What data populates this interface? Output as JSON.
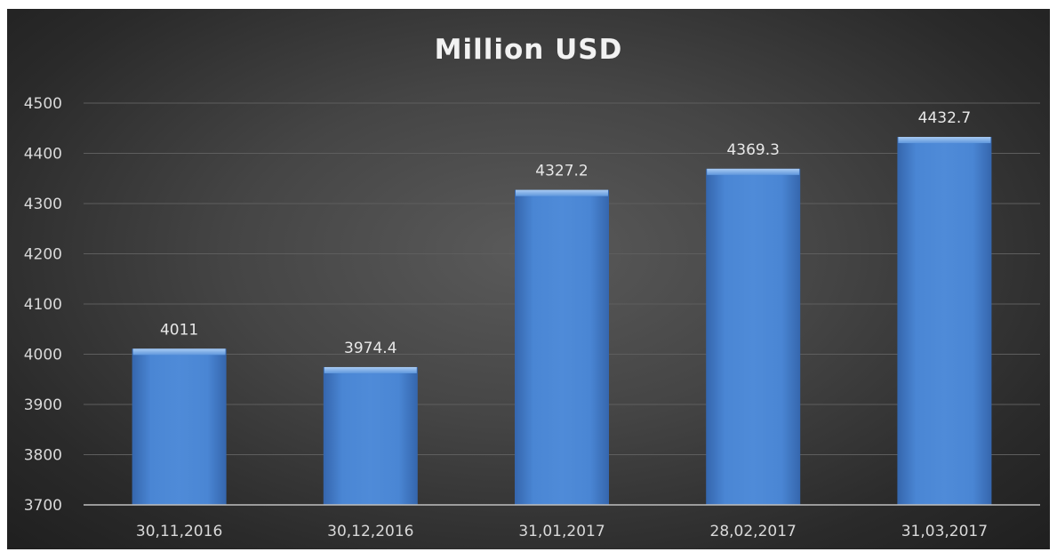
{
  "chart_data": {
    "type": "bar",
    "title": "Million USD",
    "xlabel": "",
    "ylabel": "",
    "categories": [
      "30,11,2016",
      "30,12,2016",
      "31,01,2017",
      "28,02,2017",
      "31,03,2017"
    ],
    "values": [
      4011,
      3974.4,
      4327.2,
      4369.3,
      4432.7
    ],
    "data_labels": [
      "4011",
      "3974.4",
      "4327.2",
      "4369.3",
      "4432.7"
    ],
    "yticks": [
      "3700",
      "3800",
      "3900",
      "4000",
      "4100",
      "4200",
      "4300",
      "4400",
      "4500"
    ],
    "ylim": [
      3700,
      4500
    ],
    "grid": true,
    "legend": "none",
    "colors": {
      "bar": "#4a86d4",
      "bar_dark": "#2f5fa3",
      "background": "#3c3c3c",
      "text": "#d9d9d9",
      "title": "#f2f2f2",
      "grid": "#5e5e5e",
      "axis": "#bfbfbf"
    }
  }
}
